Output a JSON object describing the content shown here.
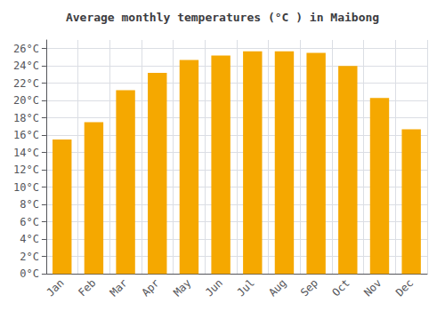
{
  "chart_data": {
    "type": "bar",
    "title": "Average monthly temperatures (°C ) in Maibong",
    "categories": [
      "Jan",
      "Feb",
      "Mar",
      "Apr",
      "May",
      "Jun",
      "Jul",
      "Aug",
      "Sep",
      "Oct",
      "Nov",
      "Dec"
    ],
    "values": [
      15.5,
      17.5,
      21.2,
      23.2,
      24.7,
      25.2,
      25.7,
      25.7,
      25.5,
      24.0,
      20.3,
      16.7
    ],
    "color": "#F5A800",
    "ylim": [
      0,
      27
    ],
    "yticks": [
      {
        "value": 0,
        "label": "0°C"
      },
      {
        "value": 2,
        "label": "2°C"
      },
      {
        "value": 4,
        "label": "4°C"
      },
      {
        "value": 6,
        "label": "6°C"
      },
      {
        "value": 8,
        "label": "8°C"
      },
      {
        "value": 10,
        "label": "10°C"
      },
      {
        "value": 12,
        "label": "12°C"
      },
      {
        "value": 14,
        "label": "14°C"
      },
      {
        "value": 16,
        "label": "16°C"
      },
      {
        "value": 18,
        "label": "18°C"
      },
      {
        "value": 20,
        "label": "20°C"
      },
      {
        "value": 22,
        "label": "22°C"
      },
      {
        "value": 24,
        "label": "24°C"
      },
      {
        "value": 26,
        "label": "26°C"
      }
    ],
    "grid": true
  }
}
